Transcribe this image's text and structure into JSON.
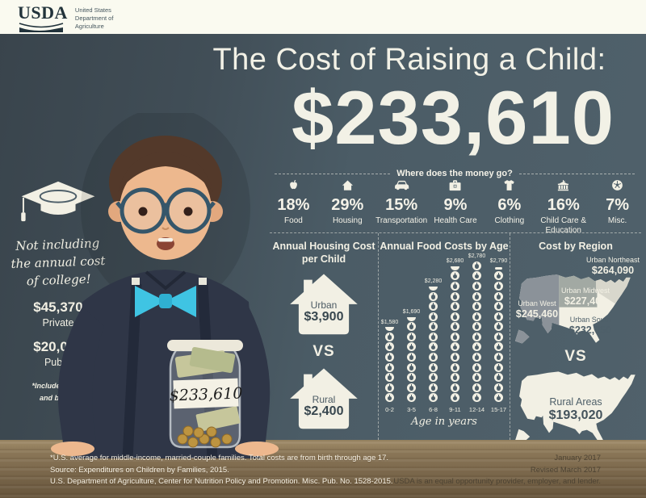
{
  "colors": {
    "slate_bg": "#4e5f69",
    "chalkboard_dark": "#3b464e",
    "cream_bar": "#fafaf0",
    "text_light": "#f2f0e4",
    "accent_cyan": "#3fc4e3",
    "wood_brown": "#7b684c",
    "map_west_gray": "#8b9299",
    "map_midwest_gray": "#a2a9a3",
    "map_northeast_gray": "#d8d7cc"
  },
  "header": {
    "logo": "USDA",
    "logo_icon": "usda-swoosh-icon",
    "dept_lines": [
      "United States",
      "Department of",
      "Agriculture"
    ]
  },
  "title": {
    "heading": "The Cost of Raising a Child:",
    "amount": "$233,610"
  },
  "college": {
    "icon": "graduation-cap-icon",
    "note_lines": [
      "Not including",
      "the annual cost",
      "of college!"
    ],
    "private": {
      "amount": "$45,370",
      "label": "Private"
    },
    "public": {
      "amount": "$20,090",
      "label": "Public"
    },
    "footnote_lines": [
      "*Includes room",
      "and board."
    ]
  },
  "money": {
    "heading": "Where does the money go?",
    "categories": [
      {
        "pct": "18%",
        "label": "Food",
        "icon": "apple-icon"
      },
      {
        "pct": "29%",
        "label": "Housing",
        "icon": "house-icon"
      },
      {
        "pct": "15%",
        "label": "Transportation",
        "icon": "car-icon"
      },
      {
        "pct": "9%",
        "label": "Health Care",
        "icon": "medical-bag-icon"
      },
      {
        "pct": "6%",
        "label": "Clothing",
        "icon": "tshirt-icon"
      },
      {
        "pct": "16%",
        "label": "Child Care & Education",
        "icon": "school-building-icon"
      },
      {
        "pct": "7%",
        "label": "Misc.",
        "icon": "soccer-ball-icon"
      }
    ]
  },
  "housing": {
    "title_lines": [
      "Annual Housing Cost",
      "per Child"
    ],
    "icon": "house-outline-icon",
    "urban": {
      "label": "Urban",
      "value": "$3,900"
    },
    "vs": "VS",
    "rural": {
      "label": "Rural",
      "value": "$2,400"
    }
  },
  "region": {
    "title": "Cost by Region",
    "icon": "us-map-icon",
    "northeast": {
      "label": "Urban Northeast",
      "value": "$264,090"
    },
    "midwest": {
      "label": "Urban Midwest",
      "value": "$227,400"
    },
    "west": {
      "label": "Urban West",
      "value": "$245,460"
    },
    "south": {
      "label": "Urban South",
      "value": "$232,050"
    },
    "vs": "VS",
    "rural": {
      "label": "Rural Areas",
      "value": "$193,020"
    }
  },
  "jar": {
    "label": "$233,610",
    "icon": "money-jar-icon"
  },
  "footer": {
    "left_lines": [
      "*U.S. average for middle-income, married-couple families. Total costs are from birth through age 17.",
      "Source: Expenditures on Children by Families, 2015.",
      "U.S. Department of Agriculture, Center for Nutrition Policy and Promotion. Misc. Pub. No. 1528-2015."
    ],
    "right_lines": [
      "January 2017",
      "Revised March 2017",
      "USDA is an equal opportunity provider, employer, and lender."
    ]
  },
  "chart_data": [
    {
      "type": "bar",
      "subtype": "pictograph",
      "title": "Annual Food Costs by Age",
      "categories": [
        "0-2",
        "3-5",
        "6-8",
        "9-11",
        "12-14",
        "15-17"
      ],
      "values": [
        1580,
        1690,
        2280,
        2680,
        2780,
        2790
      ],
      "value_labels": [
        "$1,580",
        "$1,690",
        "$2,280",
        "$2,680",
        "$2,780",
        "$2,790"
      ],
      "xlabel": "Age in years",
      "ylabel": "",
      "unit_per_icon_dollars": 200,
      "icon": "apple-coin-icon",
      "partial_top_styles": [
        "bowl",
        "bowl",
        "bowl",
        "bowl",
        "circle",
        "dash"
      ]
    },
    {
      "type": "pie",
      "title": "Where does the money go?",
      "categories": [
        "Food",
        "Housing",
        "Transportation",
        "Health Care",
        "Clothing",
        "Child Care & Education",
        "Misc."
      ],
      "values": [
        18,
        29,
        15,
        9,
        6,
        16,
        7
      ],
      "unit": "%"
    },
    {
      "type": "table",
      "title": "Cost by Region",
      "categories": [
        "Urban Northeast",
        "Urban Midwest",
        "Urban West",
        "Urban South",
        "Rural Areas"
      ],
      "values": [
        264090,
        227400,
        245460,
        232050,
        193020
      ]
    }
  ]
}
